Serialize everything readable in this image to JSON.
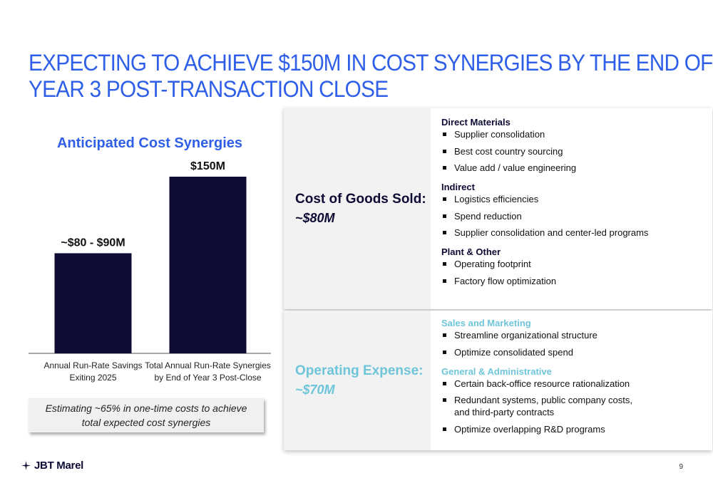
{
  "title": {
    "line1": "EXPECTING TO ACHIEVE $150M IN COST SYNERGIES BY THE END OF",
    "line2": "YEAR 3 POST-TRANSACTION CLOSE"
  },
  "chart_data": {
    "type": "bar",
    "title": "Anticipated Cost Synergies",
    "categories": [
      [
        "Annual Run-Rate Savings",
        "Exiting 2025"
      ],
      [
        "Total Annual Run-Rate Synergies",
        "by End of Year 3 Post-Close"
      ]
    ],
    "values": [
      85,
      150
    ],
    "value_labels": [
      "~$80 - $90M",
      "$150M"
    ],
    "units": "$M",
    "ylim": [
      0,
      175
    ],
    "grid": false,
    "bar_color": "#0e0b35"
  },
  "note": {
    "line1": "Estimating ~65% in one-time costs to achieve",
    "line2": "total expected cost synergies"
  },
  "cogs": {
    "heading": "Cost of Goods Sold:",
    "amount": "~$80M",
    "color": "#0e0b35",
    "groups": [
      {
        "title": "Direct Materials",
        "items": [
          "Supplier consolidation",
          "Best cost country sourcing",
          "Value add / value engineering"
        ]
      },
      {
        "title": "Indirect",
        "items": [
          "Logistics efficiencies",
          "Spend reduction",
          "Supplier consolidation and center-led programs"
        ]
      },
      {
        "title": "Plant & Other",
        "items": [
          "Operating footprint",
          "Factory flow optimization"
        ]
      }
    ]
  },
  "opex": {
    "heading": "Operating Expense:",
    "amount": "~$70M",
    "color": "#6ec5d9",
    "groups": [
      {
        "title": "Sales and Marketing",
        "items": [
          "Streamline organizational structure",
          "Optimize consolidated spend"
        ]
      },
      {
        "title": "General & Administrative",
        "items": [
          "Certain back-office resource rationalization",
          "Redundant systems, public company costs,\nand third-party contracts",
          "Optimize overlapping R&D programs"
        ]
      }
    ]
  },
  "footer": {
    "logo_text": "JBT Marel",
    "logo_icon": "jbt-marel-star-icon",
    "page_number": "9"
  },
  "colors": {
    "title_blue": "#2f5fe8",
    "panel_gray": "#f2f2f2"
  }
}
